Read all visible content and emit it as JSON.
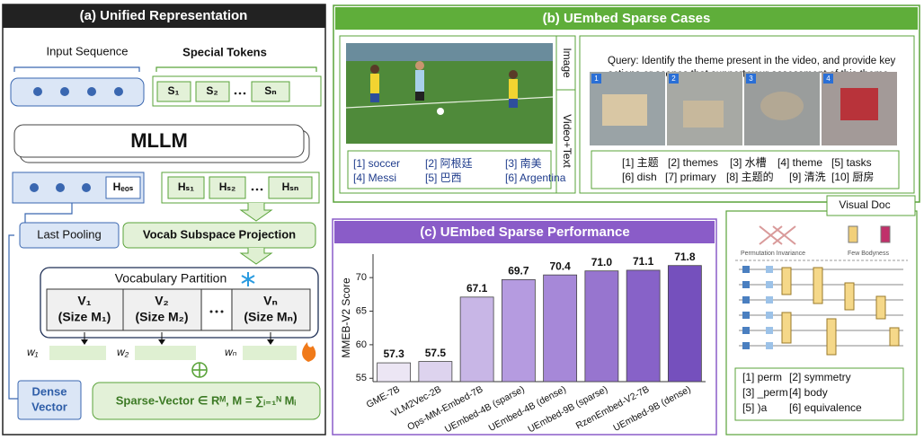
{
  "panel_a": {
    "title": "(a) Unified Representation",
    "input_sequence": "Input Sequence",
    "special_tokens": "Special Tokens",
    "special_token_labels": [
      "S₁",
      "S₂",
      "Sₙ"
    ],
    "model": "MLLM",
    "eos_hidden": "Hₑₒₛ",
    "special_hidden": [
      "Hₛ₁",
      "Hₛ₂",
      "Hₛₙ"
    ],
    "last_pooling": "Last Pooling",
    "projection": "Vocab Subspace Projection",
    "partition_title": "Vocabulary Partition",
    "partitions": [
      {
        "name": "V₁",
        "size": "(Size M₁)"
      },
      {
        "name": "V₂",
        "size": "(Size M₂)"
      },
      {
        "name": "Vₙ",
        "size": "(Size Mₙ)"
      }
    ],
    "weights": [
      "w₁",
      "w₂",
      "wₙ"
    ],
    "dense_vector": [
      "Dense",
      "Vector"
    ],
    "sparse_vector": "Sparse-Vector ∈ Rᴹ, M = ∑ᵢ₌₁ᴺ Mᵢ"
  },
  "panel_b": {
    "title": "(b) UEmbed Sparse Cases",
    "image_tab": "Image",
    "video_tab": "Video+Text",
    "image_tokens": [
      "[1] soccer",
      "[2] 阿根廷",
      "[3] 南美",
      "[4] Messi",
      "[5] 巴西",
      "[6] Argentina"
    ],
    "query": "Query: Identify the theme present in the video, and provide key actions or scenes that support your assessment of this theme.",
    "frame_numbers": [
      "1",
      "2",
      "3",
      "4"
    ],
    "video_tokens": [
      "[1] 主题",
      "[2] themes",
      "[3] 水槽",
      "[4] theme",
      "[5] tasks",
      "[6] dish",
      "[7] primary",
      "[8] 主题的",
      "[9] 清洗",
      "[10] 厨房"
    ]
  },
  "visual_doc": {
    "tab": "Visual Doc",
    "figure_labels": [
      "Permutation Invariance",
      "Few Bodyness"
    ],
    "tokens": [
      "[1] perm",
      "[2] symmetry",
      "[3] _perm",
      "[4] body",
      "[5] )a",
      "[6] equivalence"
    ]
  },
  "chart_data": {
    "type": "bar",
    "title": "(c) UEmbed Sparse Performance",
    "y_label": "MMEB-V2 Score",
    "categories": [
      "GME-7B",
      "VLM2Vec-2B",
      "Ops-MM-Embed-7B",
      "UEmbed-4B (sparse)",
      "UEmbed-4B (dense)",
      "UEmbed-9B (sparse)",
      "RzenEmbed-V2-7B",
      "UEmbed-9B (dense)"
    ],
    "values": [
      57.3,
      57.5,
      67.1,
      69.7,
      70.4,
      71.0,
      71.1,
      71.8
    ],
    "value_labels": [
      "57.3",
      "57.5",
      "67.1",
      "69.7",
      "70.4",
      "71.0",
      "71.1",
      "71.8"
    ],
    "colors": [
      "#ece6f4",
      "#ddd3ee",
      "#c8b6e6",
      "#b59be0",
      "#a688d8",
      "#9775cf",
      "#8762c8",
      "#7550bd"
    ],
    "ylim": [
      54.5,
      73.5
    ],
    "yticks": [
      55,
      60,
      65,
      70
    ],
    "grid": false
  }
}
